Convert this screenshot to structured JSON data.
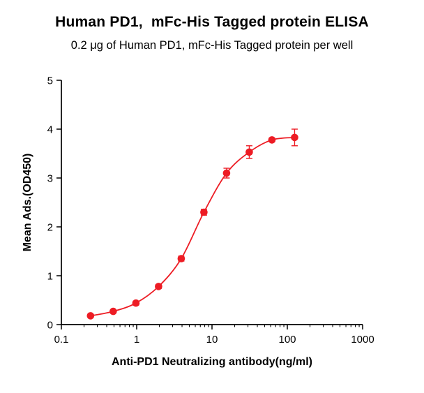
{
  "header": {
    "title": "Human PD1,  mFc-His Tagged protein ELISA",
    "subtitle": "0.2 μg of Human PD1, mFc-His Tagged protein per well"
  },
  "chart_data": {
    "type": "scatter",
    "title": "Human PD1,  mFc-His Tagged protein ELISA",
    "subtitle": "0.2 μg of Human PD1, mFc-His Tagged protein per well",
    "xlabel": "Anti-PD1 Neutralizing antibody(ng/ml)",
    "ylabel": "Mean Ads.(OD450)",
    "x_scale": "log10",
    "xlim": [
      0.1,
      1000
    ],
    "ylim": [
      0,
      5
    ],
    "x_ticks": [
      0.1,
      1,
      10,
      100,
      1000
    ],
    "x_tick_labels": [
      "0.1",
      "1",
      "10",
      "100",
      "1000"
    ],
    "y_ticks": [
      0,
      1,
      2,
      3,
      4,
      5
    ],
    "y_tick_labels": [
      "0",
      "1",
      "2",
      "3",
      "4",
      "5"
    ],
    "grid": false,
    "legend_position": "none",
    "series": [
      {
        "name": "Anti-PD1 Neutralizing antibody",
        "color": "#ed1c24",
        "marker": "circle",
        "line": "smooth",
        "x": [
          0.244,
          0.488,
          0.977,
          1.953,
          3.906,
          7.813,
          15.625,
          31.25,
          62.5,
          125
        ],
        "y": [
          0.18,
          0.27,
          0.44,
          0.78,
          1.35,
          2.3,
          3.1,
          3.53,
          3.78,
          3.83
        ],
        "y_err": [
          0.03,
          0.03,
          0.04,
          0.04,
          0.05,
          0.06,
          0.1,
          0.13,
          0.04,
          0.17
        ]
      }
    ]
  }
}
